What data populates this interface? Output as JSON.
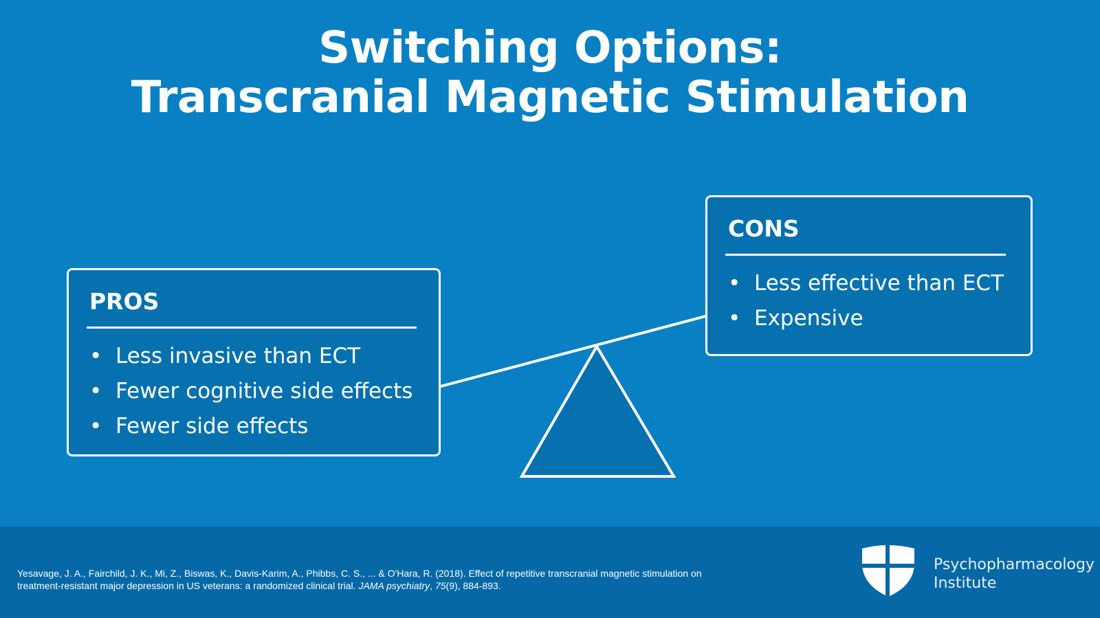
{
  "title": {
    "line1": "Switching Options:",
    "line2": "Transcranial Magnetic Stimulation"
  },
  "pros": {
    "heading": "PROS",
    "items": [
      "Less invasive than ECT",
      "Fewer cognitive side effects",
      "Fewer side effects"
    ]
  },
  "cons": {
    "heading": "CONS",
    "items": [
      "Less effective than ECT",
      "Expensive"
    ]
  },
  "citation": {
    "text_before": "Yesavage, J. A., Fairchild, J. K., Mi, Z., Biswas, K., Davis-Karim, A., Phibbs, C. S., ... & O'Hara, R. (2018). Effect of repetitive transcranial magnetic stimulation on treatment-resistant major depression in US veterans: a randomized clinical trial.",
    "journal": "JAMA psychiatry",
    "volume": "75",
    "issue_pages": "(9), 884-893."
  },
  "logo": {
    "line1": "Psychopharmacology",
    "line2": "Institute",
    "icon": "shield-icon"
  },
  "colors": {
    "background": "#0a80c4",
    "box_fill": "#0771b0",
    "footer": "#0668a6",
    "text": "#ffffff"
  }
}
